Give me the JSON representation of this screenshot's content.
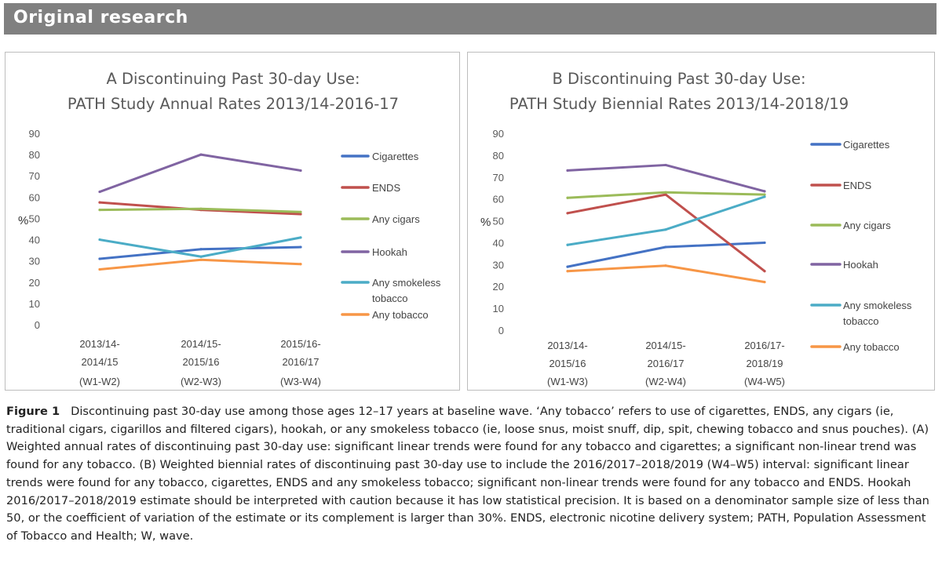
{
  "header": {
    "title": "Original research"
  },
  "caption": {
    "label": "Figure 1",
    "text": "Discontinuing past 30-day use among those ages 12–17 years at baseline wave. ‘Any tobacco’ refers to use of cigarettes, ENDS, any cigars (ie, traditional cigars, cigarillos and filtered cigars), hookah, or any smokeless tobacco (ie, loose snus, moist snuff, dip, spit, chewing tobacco and snus pouches). (A) Weighted annual rates of discontinuing past 30-day use: significant linear trends were found for any tobacco and cigarettes; a significant non-linear trend was found for any tobacco. (B) Weighted biennial rates of discontinuing past 30-day use to include the 2016/2017–2018/2019 (W4–W5) interval: significant linear trends were found for any tobacco, cigarettes, ENDS and any smokeless tobacco; significant non-linear trends were found for any tobacco and ENDS. Hookah 2016/2017–2018/2019 estimate should be interpreted with caution because it has low statistical precision. It is based on a denominator sample size of less than 50, or the coefficient of variation of the estimate or its complement is larger than 30%. ENDS, electronic nicotine delivery system; PATH, Population Assessment of Tobacco and Health; W, wave."
  },
  "chart_data": [
    {
      "type": "line",
      "title": "A  Discontinuing Past 30-day Use:",
      "subtitle": "PATH Study Annual Rates 2013/14-2016-17",
      "ylabel": "%",
      "ylim": [
        0,
        90
      ],
      "yticks": [
        0,
        10,
        20,
        30,
        40,
        50,
        60,
        70,
        80,
        90
      ],
      "grid": false,
      "legend_position": "right",
      "categories": [
        [
          "2013/14-",
          "2014/15",
          "(W1-W2)"
        ],
        [
          "2014/15-",
          "2015/16",
          "(W2-W3)"
        ],
        [
          "2015/16-",
          "2016/17",
          "(W3-W4)"
        ]
      ],
      "series": [
        {
          "name": "Cigarettes",
          "legend_lines": [
            "Cigarettes"
          ],
          "color": "#4472C4",
          "values": [
            31,
            35.5,
            36.5
          ]
        },
        {
          "name": "ENDS",
          "legend_lines": [
            "ENDS"
          ],
          "color": "#C0504D",
          "values": [
            57.5,
            54,
            52
          ]
        },
        {
          "name": "Any cigars",
          "legend_lines": [
            "Any cigars"
          ],
          "color": "#9BBB59",
          "values": [
            54,
            54.5,
            53
          ]
        },
        {
          "name": "Hookah",
          "legend_lines": [
            "Hookah"
          ],
          "color": "#8064A2",
          "values": [
            62.5,
            80,
            72.5
          ]
        },
        {
          "name": "Any smokeless tobacco",
          "legend_lines": [
            "Any smokeless",
            "tobacco"
          ],
          "color": "#4BACC6",
          "values": [
            40,
            32,
            41
          ]
        },
        {
          "name": "Any tobacco",
          "legend_lines": [
            "Any tobacco"
          ],
          "color": "#F79646",
          "values": [
            26,
            30.5,
            28.5
          ]
        }
      ]
    },
    {
      "type": "line",
      "title": "B  Discontinuing Past 30-day Use:",
      "subtitle": "PATH Study Biennial Rates 2013/14-2018/19",
      "ylabel": "%",
      "ylim": [
        0,
        90
      ],
      "yticks": [
        0,
        10,
        20,
        30,
        40,
        50,
        60,
        70,
        80,
        90
      ],
      "grid": false,
      "legend_position": "right",
      "categories": [
        [
          "2013/14-",
          "2015/16",
          "(W1-W3)"
        ],
        [
          "2014/15-",
          "2016/17",
          "(W2-W4)"
        ],
        [
          "2016/17-",
          "2018/19",
          "(W4-W5)"
        ]
      ],
      "series": [
        {
          "name": "Cigarettes",
          "legend_lines": [
            "Cigarettes"
          ],
          "color": "#4472C4",
          "values": [
            29,
            38,
            40
          ]
        },
        {
          "name": "ENDS",
          "legend_lines": [
            "ENDS"
          ],
          "color": "#C0504D",
          "values": [
            53.5,
            62,
            27
          ]
        },
        {
          "name": "Any cigars",
          "legend_lines": [
            "Any cigars"
          ],
          "color": "#9BBB59",
          "values": [
            60.5,
            63,
            62
          ]
        },
        {
          "name": "Hookah",
          "legend_lines": [
            "Hookah"
          ],
          "color": "#8064A2",
          "values": [
            73,
            75.5,
            63.5
          ]
        },
        {
          "name": "Any smokeless tobacco",
          "legend_lines": [
            "Any smokeless",
            "tobacco"
          ],
          "color": "#4BACC6",
          "values": [
            39,
            46,
            61
          ]
        },
        {
          "name": "Any tobacco",
          "legend_lines": [
            "Any tobacco"
          ],
          "color": "#F79646",
          "values": [
            27,
            29.5,
            22
          ]
        }
      ]
    }
  ]
}
